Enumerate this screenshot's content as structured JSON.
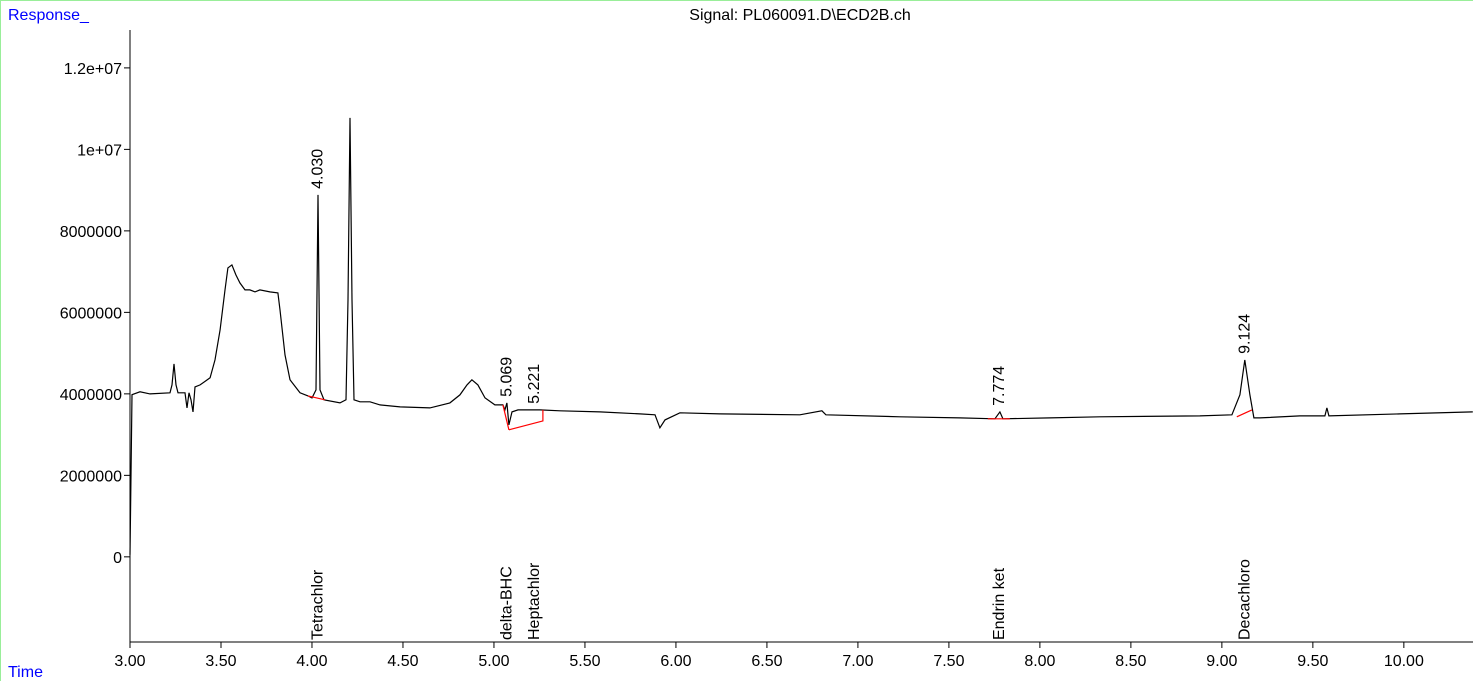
{
  "chart_data": {
    "type": "line",
    "title": "Signal: PL060091.D\\ECD2B.ch",
    "y_label": "Response_",
    "x_label": "Time",
    "color": "#000000",
    "label_color": "#0000ff",
    "baseline_color": "#ff0000",
    "xlim": [
      3.0,
      10.38
    ],
    "ylim": [
      -2090000,
      12930000
    ],
    "xticks": [
      {
        "value": 3.0,
        "label": "3.00"
      },
      {
        "value": 3.5,
        "label": "3.50"
      },
      {
        "value": 4.0,
        "label": "4.00"
      },
      {
        "value": 4.5,
        "label": "4.50"
      },
      {
        "value": 5.0,
        "label": "5.00"
      },
      {
        "value": 5.5,
        "label": "5.50"
      },
      {
        "value": 6.0,
        "label": "6.00"
      },
      {
        "value": 6.5,
        "label": "6.50"
      },
      {
        "value": 7.0,
        "label": "7.00"
      },
      {
        "value": 7.5,
        "label": "7.50"
      },
      {
        "value": 8.0,
        "label": "8.00"
      },
      {
        "value": 8.5,
        "label": "8.50"
      },
      {
        "value": 9.0,
        "label": "9.00"
      },
      {
        "value": 9.5,
        "label": "9.50"
      },
      {
        "value": 10.0,
        "label": "10.00"
      }
    ],
    "yticks": [
      0,
      2000000,
      4000000,
      6000000,
      8000000,
      {
        "value": 10000000,
        "label": "1e+07"
      },
      {
        "value": 12000000,
        "label": "1.2e+07"
      }
    ],
    "x": [
      3.0,
      3.011,
      3.055,
      3.11,
      3.22,
      3.231,
      3.242,
      3.253,
      3.264,
      3.302,
      3.313,
      3.324,
      3.335,
      3.346,
      3.357,
      3.385,
      3.44,
      3.467,
      3.495,
      3.522,
      3.538,
      3.56,
      3.582,
      3.604,
      3.632,
      3.659,
      3.687,
      3.714,
      3.769,
      3.813,
      3.824,
      3.852,
      3.879,
      3.934,
      3.978,
      4.0,
      4.022,
      4.033,
      4.044,
      4.066,
      4.154,
      4.187,
      4.198,
      4.209,
      4.22,
      4.231,
      4.264,
      4.319,
      4.374,
      4.484,
      4.648,
      4.758,
      4.813,
      4.852,
      4.879,
      4.912,
      4.951,
      5.005,
      5.049,
      5.06,
      5.071,
      5.082,
      5.099,
      5.132,
      5.17,
      5.253,
      5.363,
      5.582,
      5.802,
      5.885,
      5.912,
      5.94,
      6.022,
      6.242,
      6.681,
      6.802,
      6.824,
      7.231,
      7.56,
      7.753,
      7.78,
      7.797,
      8.055,
      8.33,
      8.879,
      9.055,
      9.099,
      9.126,
      9.154,
      9.176,
      9.209,
      9.429,
      9.566,
      9.577,
      9.588,
      9.978,
      10.379
    ],
    "values": [
      50000,
      3980000,
      4050000,
      4000000,
      4025000,
      4221000,
      4736000,
      4221000,
      4025000,
      4025000,
      3656000,
      4025000,
      3853000,
      3558000,
      4172000,
      4221000,
      4393000,
      4834000,
      5571000,
      6552000,
      7092000,
      7166000,
      6920000,
      6724000,
      6552000,
      6552000,
      6503000,
      6552000,
      6503000,
      6479000,
      6061000,
      4957000,
      4344000,
      4025000,
      3951000,
      3902000,
      4098000,
      8883000,
      4098000,
      3853000,
      3779000,
      3853000,
      6307000,
      10773000,
      6307000,
      3853000,
      3804000,
      3804000,
      3730000,
      3681000,
      3656000,
      3779000,
      3975000,
      4221000,
      4344000,
      4221000,
      3902000,
      3730000,
      3730000,
      3607000,
      3779000,
      3239000,
      3558000,
      3607000,
      3607000,
      3607000,
      3583000,
      3558000,
      3509000,
      3485000,
      3166000,
      3362000,
      3534000,
      3509000,
      3485000,
      3583000,
      3485000,
      3436000,
      3411000,
      3387000,
      3558000,
      3387000,
      3411000,
      3436000,
      3460000,
      3485000,
      3975000,
      4834000,
      3975000,
      3411000,
      3411000,
      3460000,
      3460000,
      3656000,
      3460000,
      3509000,
      3558000
    ],
    "peaks": [
      {
        "rt": 4.03,
        "rt_label": "4.030",
        "name": "Tetrachlor"
      },
      {
        "rt": 5.069,
        "rt_label": "5.069",
        "name": "delta-BHC"
      },
      {
        "rt": 5.221,
        "rt_label": "5.221",
        "name": "Heptachlor"
      },
      {
        "rt": 7.774,
        "rt_label": "7.774",
        "name": "Endrin ket"
      },
      {
        "rt": 9.124,
        "rt_label": "9.124",
        "name": "Decachloro"
      }
    ],
    "baselines": [
      {
        "x": [
          3.978,
          4.071
        ],
        "y": [
          3951000,
          3853000
        ]
      },
      {
        "x": [
          5.049,
          5.082
        ],
        "y": [
          3730000,
          3117000
        ]
      },
      {
        "x": [
          5.082,
          5.269,
          5.269
        ],
        "y": [
          3117000,
          3337000,
          3607000
        ]
      },
      {
        "x": [
          7.714,
          7.835
        ],
        "y": [
          3387000,
          3387000
        ]
      },
      {
        "x": [
          9.082,
          9.165
        ],
        "y": [
          3436000,
          3607000
        ]
      }
    ]
  }
}
